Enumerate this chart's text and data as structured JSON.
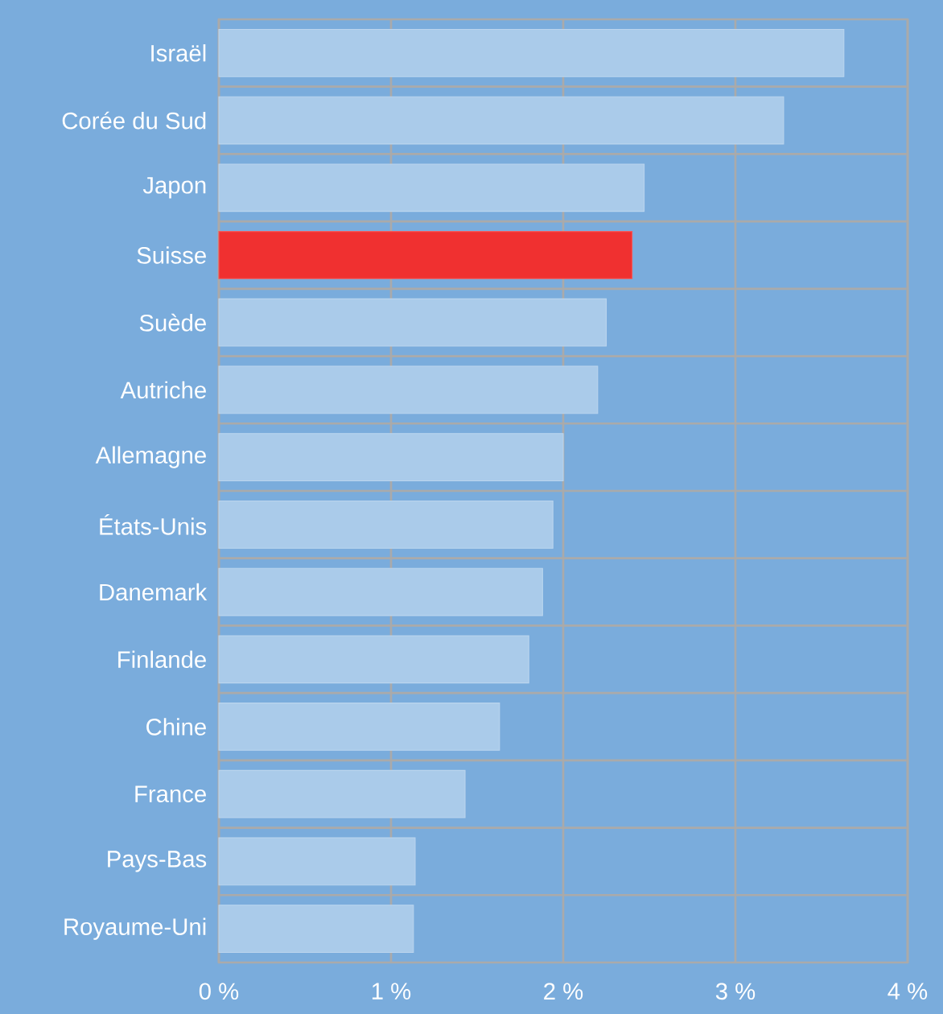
{
  "chart_data": {
    "type": "bar",
    "orientation": "horizontal",
    "categories": [
      "Israël",
      "Corée du Sud",
      "Japon",
      "Suisse",
      "Suède",
      "Autriche",
      "Allemagne",
      "États-Unis",
      "Danemark",
      "Finlande",
      "Chine",
      "France",
      "Pays-Bas",
      "Royaume-Uni"
    ],
    "values": [
      3.63,
      3.28,
      2.47,
      2.4,
      2.25,
      2.2,
      2.0,
      1.94,
      1.88,
      1.8,
      1.63,
      1.43,
      1.14,
      1.13
    ],
    "colors": [
      "#aacbea",
      "#aacbea",
      "#aacbea",
      "#f03030",
      "#aacbea",
      "#aacbea",
      "#aacbea",
      "#aacbea",
      "#aacbea",
      "#aacbea",
      "#aacbea",
      "#aacbea",
      "#aacbea",
      "#aacbea"
    ],
    "xlim": [
      0,
      4
    ],
    "xticks": [
      {
        "value": 0,
        "label": "0 %"
      },
      {
        "value": 1,
        "label": "1 %"
      },
      {
        "value": 2,
        "label": "2 %"
      },
      {
        "value": 3,
        "label": "3 %"
      },
      {
        "value": 4,
        "label": "4 %"
      }
    ],
    "grid": true
  }
}
